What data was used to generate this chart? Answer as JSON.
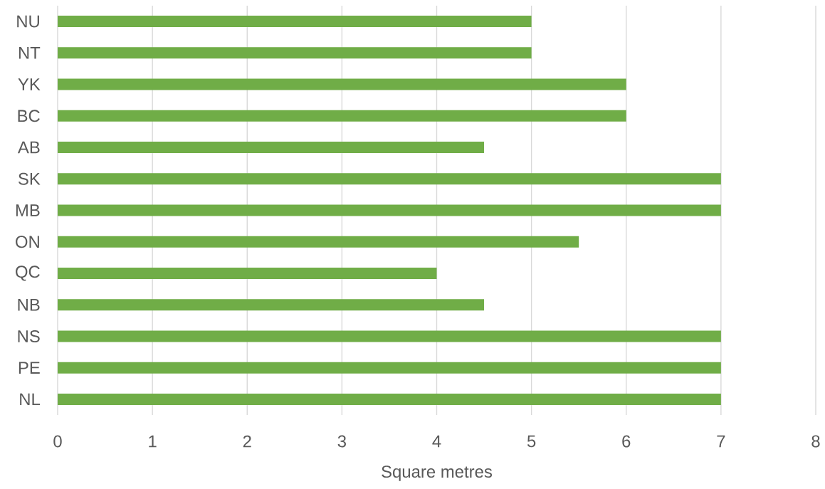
{
  "chart_data": {
    "type": "bar",
    "orientation": "horizontal",
    "xlabel": "Square metres",
    "categories": [
      "NU",
      "NT",
      "YK",
      "BC",
      "AB",
      "SK",
      "MB",
      "ON",
      "QC",
      "NB",
      "NS",
      "PE",
      "NL"
    ],
    "values": [
      5,
      5,
      6,
      6,
      4.5,
      7,
      7,
      5.5,
      4,
      4.5,
      7,
      7,
      7
    ],
    "color": "#70ad47",
    "xlim": [
      0,
      8
    ],
    "xticks": [
      0,
      1,
      2,
      3,
      4,
      5,
      6,
      7,
      8
    ],
    "grid": "x"
  }
}
